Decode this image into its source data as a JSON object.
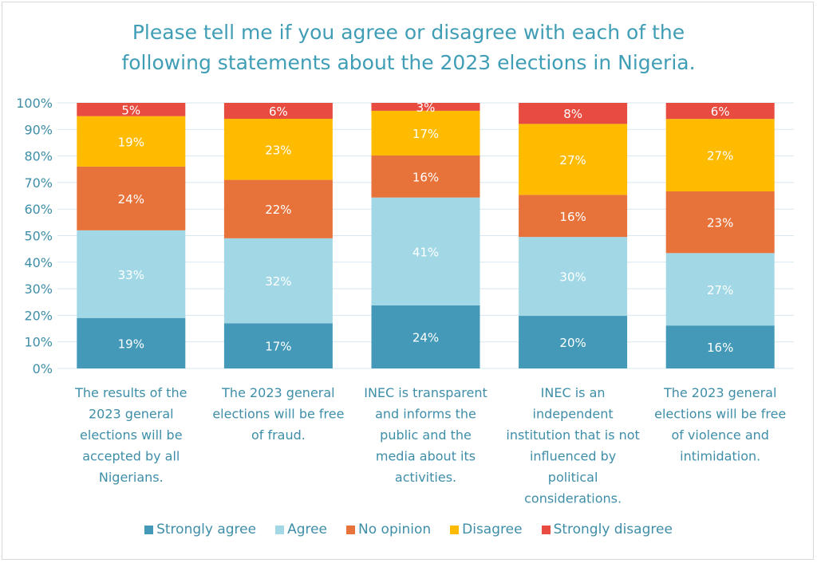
{
  "chart_data": {
    "type": "bar",
    "stacked": true,
    "title": "Please tell me if you agree or disagree with each of the following statements about the 2023 elections in Nigeria.",
    "title_lines": [
      "Please tell me if you agree or disagree with each of the",
      "following statements about the 2023 elections in Nigeria."
    ],
    "categories": [
      "The results of the 2023 general elections will be accepted by all Nigerians.",
      "The 2023 general elections will be free of fraud.",
      "INEC is transparent and informs the public and the media about its activities.",
      "INEC is an independent institution that is not influenced by political considerations.",
      "The 2023 general elections will be free of violence and intimidation."
    ],
    "category_lines": [
      [
        "The results of the",
        "2023 general",
        "elections will be",
        "accepted by all",
        "Nigerians."
      ],
      [
        "The 2023 general",
        "elections will be free",
        "of fraud."
      ],
      [
        "INEC is transparent",
        "and informs the",
        "public and the",
        "media about its",
        "activities."
      ],
      [
        "INEC is an",
        "independent",
        "institution that is not",
        "influenced by",
        "political",
        "considerations."
      ],
      [
        "The 2023 general",
        "elections will be free",
        "of violence and",
        "intimidation."
      ]
    ],
    "series": [
      {
        "name": "Strongly agree",
        "color": "#4499b9",
        "values": [
          19,
          17,
          24,
          20,
          16
        ]
      },
      {
        "name": "Agree",
        "color": "#a2d8e6",
        "values": [
          33,
          32,
          41,
          30,
          27
        ]
      },
      {
        "name": "No opinion",
        "color": "#e8733a",
        "values": [
          24,
          22,
          16,
          16,
          23
        ]
      },
      {
        "name": "Disagree",
        "color": "#ffbb00",
        "values": [
          19,
          23,
          17,
          27,
          27
        ]
      },
      {
        "name": "Strongly disagree",
        "color": "#e84b3f",
        "values": [
          5,
          6,
          3,
          8,
          6
        ]
      }
    ],
    "value_suffix": "%",
    "ylim": [
      0,
      100
    ],
    "yticks": [
      "0%",
      "10%",
      "20%",
      "30%",
      "40%",
      "50%",
      "60%",
      "70%",
      "80%",
      "90%",
      "100%"
    ],
    "grid": true,
    "legend_position": "bottom",
    "text_color": "#3f8ea8"
  }
}
